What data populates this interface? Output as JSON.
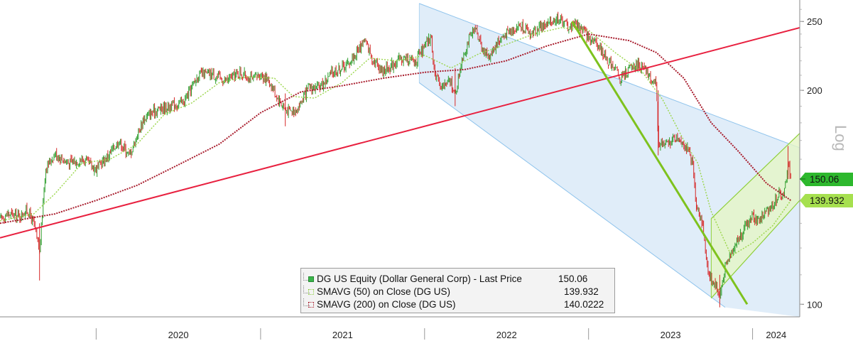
{
  "chart_data": {
    "type": "line",
    "title": "",
    "scale": "log",
    "scale_label": "Log",
    "ylim": [
      96,
      268
    ],
    "y_ticks": [
      100,
      150,
      200,
      250
    ],
    "y_tick_labels": [
      "100",
      "",
      "200",
      "250"
    ],
    "x_tick_labels": [
      "2020",
      "2021",
      "2022",
      "2023",
      "2024"
    ],
    "x_range": [
      "2019-06-01",
      "2024-04-15"
    ],
    "grid": false,
    "legend_position": "bottom-center",
    "legend": [
      {
        "label": "DG US Equity (Dollar General Corp) - Last Price",
        "value": "150.06"
      },
      {
        "label": "SMAVG (50)  on Close (DG US)",
        "value": "139.932"
      },
      {
        "label": "SMAVG (200)  on Close (DG US)",
        "value": "140.0222"
      }
    ],
    "last_value_tags": [
      {
        "label": "150.06",
        "value": 150.06,
        "color": "#2db82d"
      },
      {
        "label": "139.932",
        "value": 139.932,
        "color": "#a6e04f"
      }
    ],
    "colors": {
      "up_candle": "#2e9e2e",
      "down_candle": "#d62828",
      "sma50": "#9ad64a",
      "sma200": "#a81c2c",
      "support_line": "#e8203f",
      "downtrend_line": "#7ec21e",
      "channel_fill": "#dbeaf8",
      "channel_edge": "#8ec3ec",
      "uptrend_fill": "#e5f5c6",
      "uptrend_edge": "#8fcf3a"
    },
    "series": [
      {
        "name": "DG US Equity (Dollar General Corp) - Last Price",
        "kind": "price",
        "points": [
          [
            "2019-06-01",
            132
          ],
          [
            "2019-06-20",
            134
          ],
          [
            "2019-07-15",
            133
          ],
          [
            "2019-08-01",
            136
          ],
          [
            "2019-08-15",
            130
          ],
          [
            "2019-08-28",
            118
          ],
          [
            "2019-09-10",
            155
          ],
          [
            "2019-10-01",
            163
          ],
          [
            "2019-11-01",
            158
          ],
          [
            "2019-12-01",
            160
          ],
          [
            "2020-01-01",
            155
          ],
          [
            "2020-02-01",
            163
          ],
          [
            "2020-02-20",
            170
          ],
          [
            "2020-03-15",
            162
          ],
          [
            "2020-04-15",
            182
          ],
          [
            "2020-05-15",
            188
          ],
          [
            "2020-06-15",
            190
          ],
          [
            "2020-07-15",
            193
          ],
          [
            "2020-08-15",
            210
          ],
          [
            "2020-09-15",
            211
          ],
          [
            "2020-10-15",
            206
          ],
          [
            "2020-11-15",
            212
          ],
          [
            "2020-12-15",
            207
          ],
          [
            "2021-01-01",
            211
          ],
          [
            "2021-01-20",
            206
          ],
          [
            "2021-02-10",
            194
          ],
          [
            "2021-02-25",
            188
          ],
          [
            "2021-03-10",
            187
          ],
          [
            "2021-03-25",
            189
          ],
          [
            "2021-04-20",
            202
          ],
          [
            "2021-05-10",
            201
          ],
          [
            "2021-06-10",
            212
          ],
          [
            "2021-07-15",
            218
          ],
          [
            "2021-08-01",
            225
          ],
          [
            "2021-08-20",
            236
          ],
          [
            "2021-09-10",
            220
          ],
          [
            "2021-10-01",
            213
          ],
          [
            "2021-11-01",
            220
          ],
          [
            "2021-11-20",
            222
          ],
          [
            "2021-12-10",
            219
          ],
          [
            "2022-01-01",
            230
          ],
          [
            "2022-01-15",
            238
          ],
          [
            "2022-01-25",
            208
          ],
          [
            "2022-02-10",
            203
          ],
          [
            "2022-03-01",
            206
          ],
          [
            "2022-03-10",
            196
          ],
          [
            "2022-03-25",
            222
          ],
          [
            "2022-04-10",
            236
          ],
          [
            "2022-04-25",
            244
          ],
          [
            "2022-05-15",
            225
          ],
          [
            "2022-05-28",
            224
          ],
          [
            "2022-06-10",
            233
          ],
          [
            "2022-07-01",
            240
          ],
          [
            "2022-07-20",
            245
          ],
          [
            "2022-08-05",
            247
          ],
          [
            "2022-08-25",
            240
          ],
          [
            "2022-09-10",
            245
          ],
          [
            "2022-10-01",
            247
          ],
          [
            "2022-10-20",
            253
          ],
          [
            "2022-11-05",
            250
          ],
          [
            "2022-11-20",
            245
          ],
          [
            "2022-12-01",
            249
          ],
          [
            "2022-12-15",
            245
          ],
          [
            "2023-01-01",
            237
          ],
          [
            "2023-01-15",
            235
          ],
          [
            "2023-02-01",
            226
          ],
          [
            "2023-02-15",
            219
          ],
          [
            "2023-03-01",
            216
          ],
          [
            "2023-03-10",
            207
          ],
          [
            "2023-03-20",
            210
          ],
          [
            "2023-04-05",
            215
          ],
          [
            "2023-04-20",
            218
          ],
          [
            "2023-05-10",
            212
          ],
          [
            "2023-05-25",
            206
          ],
          [
            "2023-06-01",
            201
          ],
          [
            "2023-06-05",
            169
          ],
          [
            "2023-06-20",
            167
          ],
          [
            "2023-07-05",
            170
          ],
          [
            "2023-07-20",
            172
          ],
          [
            "2023-08-05",
            167
          ],
          [
            "2023-08-20",
            159
          ],
          [
            "2023-08-28",
            139
          ],
          [
            "2023-09-10",
            131
          ],
          [
            "2023-09-25",
            110
          ],
          [
            "2023-10-05",
            108
          ],
          [
            "2023-10-20",
            103
          ],
          [
            "2023-11-01",
            112
          ],
          [
            "2023-11-15",
            119
          ],
          [
            "2023-12-01",
            124
          ],
          [
            "2023-12-15",
            128
          ],
          [
            "2024-01-01",
            133
          ],
          [
            "2024-01-15",
            131
          ],
          [
            "2024-02-01",
            135
          ],
          [
            "2024-02-15",
            138
          ],
          [
            "2024-03-01",
            143
          ],
          [
            "2024-03-10",
            141
          ],
          [
            "2024-03-20",
            158
          ],
          [
            "2024-03-26",
            150.06
          ]
        ]
      },
      {
        "name": "SMAVG (50)  on Close (DG US)",
        "kind": "sma50",
        "points": [
          [
            "2019-06-01",
            131
          ],
          [
            "2019-08-15",
            134
          ],
          [
            "2019-10-01",
            143
          ],
          [
            "2019-12-01",
            158
          ],
          [
            "2020-02-01",
            160
          ],
          [
            "2020-04-01",
            168
          ],
          [
            "2020-06-01",
            185
          ],
          [
            "2020-08-01",
            192
          ],
          [
            "2020-10-01",
            205
          ],
          [
            "2020-12-01",
            209
          ],
          [
            "2021-02-01",
            208
          ],
          [
            "2021-03-15",
            196
          ],
          [
            "2021-05-01",
            195
          ],
          [
            "2021-07-01",
            205
          ],
          [
            "2021-09-01",
            222
          ],
          [
            "2021-11-01",
            220
          ],
          [
            "2022-01-01",
            224
          ],
          [
            "2022-03-01",
            215
          ],
          [
            "2022-05-01",
            225
          ],
          [
            "2022-07-01",
            232
          ],
          [
            "2022-09-01",
            240
          ],
          [
            "2022-11-01",
            245
          ],
          [
            "2023-01-01",
            243
          ],
          [
            "2023-03-01",
            226
          ],
          [
            "2023-05-01",
            212
          ],
          [
            "2023-06-15",
            194
          ],
          [
            "2023-08-01",
            170
          ],
          [
            "2023-09-01",
            158
          ],
          [
            "2023-10-01",
            135
          ],
          [
            "2023-11-15",
            117
          ],
          [
            "2024-01-01",
            122
          ],
          [
            "2024-02-15",
            129
          ],
          [
            "2024-03-26",
            139.932
          ]
        ]
      },
      {
        "name": "SMAVG (200)  on Close (DG US)",
        "kind": "sma200",
        "points": [
          [
            "2019-06-01",
            130
          ],
          [
            "2019-10-01",
            134
          ],
          [
            "2020-01-01",
            140
          ],
          [
            "2020-04-01",
            147
          ],
          [
            "2020-07-01",
            157
          ],
          [
            "2020-10-01",
            168
          ],
          [
            "2021-01-01",
            186
          ],
          [
            "2021-04-01",
            199
          ],
          [
            "2021-07-01",
            203
          ],
          [
            "2021-10-01",
            208
          ],
          [
            "2022-01-01",
            212
          ],
          [
            "2022-04-01",
            214
          ],
          [
            "2022-07-01",
            220
          ],
          [
            "2022-10-01",
            231
          ],
          [
            "2023-01-01",
            240
          ],
          [
            "2023-04-01",
            235
          ],
          [
            "2023-06-01",
            226
          ],
          [
            "2023-08-01",
            208
          ],
          [
            "2023-10-01",
            180
          ],
          [
            "2023-12-01",
            164
          ],
          [
            "2024-02-01",
            148
          ],
          [
            "2024-03-26",
            140.0222
          ]
        ]
      }
    ],
    "trendlines": [
      {
        "kind": "support_line",
        "points": [
          [
            "2019-06-01",
            124
          ],
          [
            "2024-04-15",
            245
          ]
        ]
      },
      {
        "kind": "downtrend_line",
        "points": [
          [
            "2022-11-25",
            250
          ],
          [
            "2023-12-20",
            100
          ]
        ]
      },
      {
        "kind": "channel_upper",
        "points": [
          [
            "2021-12-20",
            265
          ],
          [
            "2024-04-15",
            166
          ]
        ]
      },
      {
        "kind": "channel_lower",
        "points": [
          [
            "2021-12-20",
            205
          ],
          [
            "2023-11-01",
            99
          ]
        ]
      },
      {
        "kind": "uptrend_upper",
        "points": [
          [
            "2023-10-01",
            132
          ],
          [
            "2024-04-15",
            174
          ]
        ]
      },
      {
        "kind": "uptrend_lower",
        "points": [
          [
            "2023-10-01",
            102
          ],
          [
            "2024-04-15",
            140
          ]
        ]
      }
    ]
  }
}
